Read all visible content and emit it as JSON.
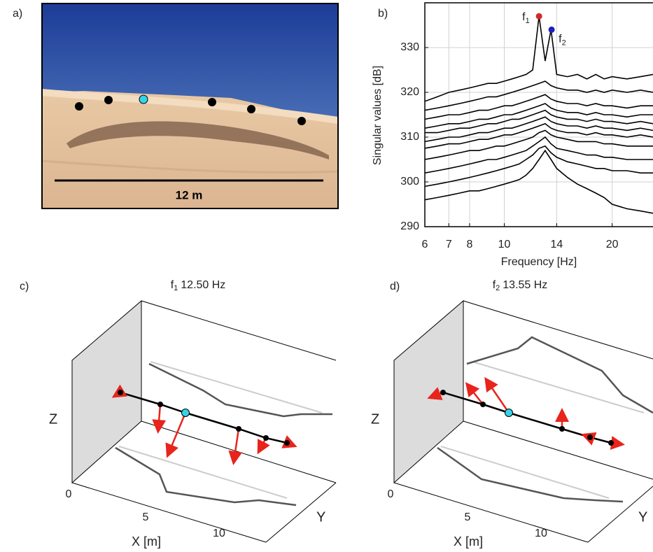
{
  "chart_data": {
    "type": "line",
    "panel_label": "b)",
    "xlabel": "Frequency [Hz]",
    "ylabel": "Singular values [dB]",
    "xscale": "log",
    "grid": true,
    "xlim": [
      6,
      26
    ],
    "xticks": [
      6,
      7,
      8,
      10,
      14,
      20
    ],
    "ylim": [
      290,
      340
    ],
    "yticks": [
      290,
      300,
      310,
      320,
      330
    ],
    "x": [
      6,
      6.5,
      7,
      7.5,
      8,
      8.5,
      9,
      9.5,
      10,
      10.5,
      11,
      11.5,
      12,
      12.5,
      13,
      13.5,
      14,
      15,
      16,
      17,
      18,
      19,
      20,
      22,
      24,
      26
    ],
    "series": [
      {
        "color": "#000000",
        "values": [
          318,
          319,
          320,
          320.5,
          321,
          321.5,
          322,
          322,
          322.5,
          323,
          323.5,
          324,
          325,
          337,
          327,
          334,
          324,
          323.5,
          324,
          323,
          324,
          323,
          323.5,
          323,
          323.5,
          324
        ]
      },
      {
        "color": "#000000",
        "values": [
          316,
          316.5,
          317,
          317.5,
          318,
          318.5,
          319,
          319,
          319.5,
          320,
          320.5,
          321,
          321.5,
          322,
          322.5,
          321.5,
          321,
          320.5,
          320.5,
          320,
          320.5,
          320,
          320.5,
          320,
          320.5,
          320
        ]
      },
      {
        "color": "#000000",
        "values": [
          314,
          314.5,
          315,
          315,
          315.5,
          316,
          316,
          316.5,
          317,
          317,
          317.5,
          318,
          318.5,
          319,
          319.5,
          318.5,
          318,
          317.5,
          317.5,
          317,
          317.5,
          317,
          317,
          316.5,
          317,
          317
        ]
      },
      {
        "color": "#000000",
        "values": [
          312,
          312.5,
          313,
          313,
          313.5,
          314,
          314,
          314.5,
          315,
          315,
          315.5,
          316,
          316.5,
          317,
          317.5,
          316.5,
          316,
          315.5,
          315.5,
          315,
          315.5,
          315,
          315,
          314.5,
          315,
          315
        ]
      },
      {
        "color": "#000000",
        "values": [
          311,
          311,
          311.5,
          312,
          312,
          312.5,
          313,
          313,
          313.5,
          314,
          314,
          314.5,
          315,
          315.5,
          316,
          315,
          314.5,
          314,
          314,
          313.5,
          314,
          313.5,
          313.5,
          313,
          313.5,
          313
        ]
      },
      {
        "color": "#000000",
        "values": [
          309,
          309.5,
          310,
          310,
          310.5,
          311,
          311,
          311.5,
          312,
          312,
          312.5,
          313,
          313.5,
          314,
          314.5,
          313.5,
          313,
          312.5,
          312.5,
          312,
          312.5,
          312,
          312,
          311.5,
          312,
          311.5
        ]
      },
      {
        "color": "#000000",
        "values": [
          307.5,
          308,
          308.5,
          308.5,
          309,
          309.5,
          309.5,
          310,
          310.5,
          310.5,
          311,
          311.5,
          312,
          312.5,
          313,
          312,
          311.5,
          311,
          311,
          310.5,
          311,
          310.5,
          310.5,
          310,
          310.5,
          310
        ]
      },
      {
        "color": "#000000",
        "values": [
          305,
          305.5,
          306,
          306.5,
          307,
          307,
          307.5,
          308,
          308,
          308.5,
          309,
          309.5,
          310,
          311,
          311.5,
          310.5,
          310,
          309.5,
          309,
          309,
          309,
          308.5,
          308.5,
          308,
          308,
          308
        ]
      },
      {
        "color": "#000000",
        "values": [
          302,
          302.5,
          303,
          303.5,
          304,
          304.5,
          305,
          305,
          305.5,
          306,
          306.5,
          307,
          308,
          309,
          310,
          308.5,
          307.5,
          307,
          306.5,
          306,
          306,
          305.5,
          305.5,
          305,
          305,
          305
        ]
      },
      {
        "color": "#000000",
        "values": [
          299,
          299.5,
          300,
          300.5,
          301,
          301.5,
          302,
          302.5,
          303,
          303.5,
          304,
          305,
          306,
          307.5,
          308,
          306.5,
          305.5,
          304.5,
          304,
          303.5,
          303,
          303,
          302.5,
          302.5,
          302,
          302
        ]
      },
      {
        "color": "#000000",
        "values": [
          296,
          296.5,
          297,
          297.5,
          298,
          298,
          298.5,
          299,
          299.5,
          300,
          300.5,
          301.5,
          303,
          305,
          307,
          305,
          303,
          301,
          299.5,
          298.5,
          297.5,
          296.5,
          295,
          294,
          293.5,
          293
        ]
      }
    ],
    "annotations": [
      {
        "symbol": "f",
        "index": "1",
        "x": 12.5,
        "y": 337,
        "color": "#d62728"
      },
      {
        "symbol": "f",
        "index": "2",
        "x": 13.55,
        "y": 334,
        "color": "#1f1fbf"
      }
    ]
  },
  "panels": {
    "a": {
      "label": "a)",
      "scale_label": "12 m"
    },
    "c": {
      "label": "c)",
      "title": {
        "symbol": "f",
        "index": "1",
        "text": "12.50 Hz"
      },
      "xlabel": "X [m]",
      "ylabel": "Y",
      "zlabel": "Z",
      "xticks": [
        "0",
        "5",
        "10"
      ]
    },
    "d": {
      "label": "d)",
      "title": {
        "symbol": "f",
        "index": "2",
        "text": "13.55 Hz"
      },
      "xlabel": "X [m]",
      "ylabel": "Y",
      "zlabel": "Z",
      "xticks": [
        "0",
        "5",
        "10"
      ]
    }
  }
}
